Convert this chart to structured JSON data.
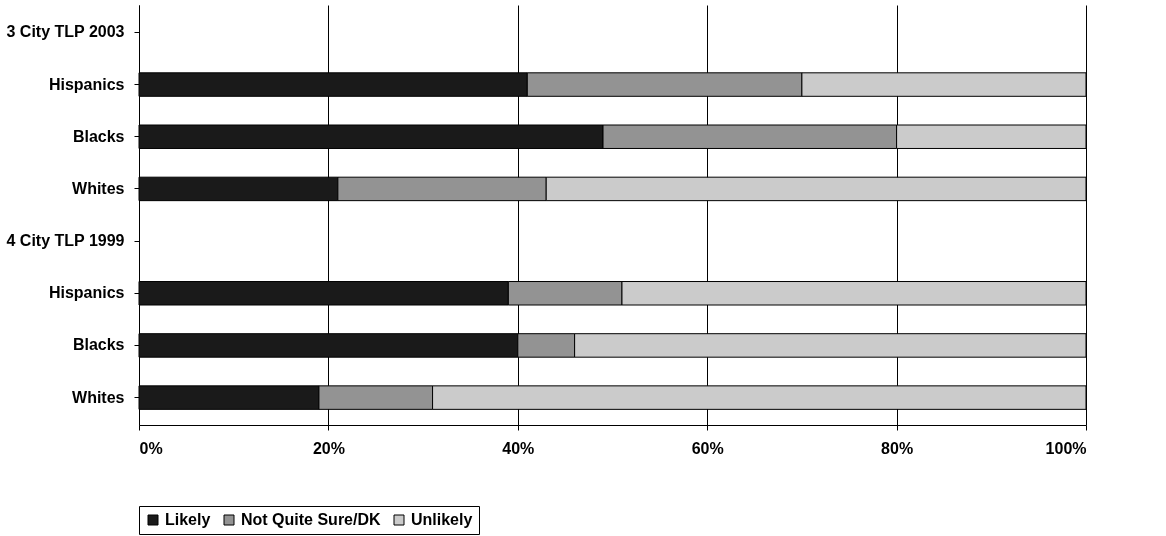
{
  "chart_data": {
    "type": "bar",
    "orientation": "horizontal",
    "stacked": true,
    "categories": [
      "3 City TLP 2003",
      "Hispanics",
      "Blacks",
      "Whites",
      "4 City TLP 1999",
      "Hispanics",
      "Blacks",
      "Whites"
    ],
    "series": [
      {
        "name": "Likely",
        "color": "#1a1a1a",
        "values": [
          null,
          41,
          49,
          21,
          null,
          39,
          40,
          19
        ]
      },
      {
        "name": "Not Quite Sure/DK",
        "color": "#939393",
        "values": [
          null,
          29,
          31,
          22,
          null,
          12,
          6,
          12
        ]
      },
      {
        "name": "Unlikely",
        "color": "#cbcbcb",
        "values": [
          null,
          30,
          20,
          57,
          null,
          49,
          54,
          69
        ]
      }
    ],
    "xlim": [
      0,
      100
    ],
    "xticks": [
      {
        "value": 0,
        "label": "0%"
      },
      {
        "value": 20,
        "label": "20%"
      },
      {
        "value": 40,
        "label": "40%"
      },
      {
        "value": 60,
        "label": "60%"
      },
      {
        "value": 80,
        "label": "80%"
      },
      {
        "value": 100,
        "label": "100%"
      }
    ],
    "grid": "x",
    "legend": "bottom"
  }
}
